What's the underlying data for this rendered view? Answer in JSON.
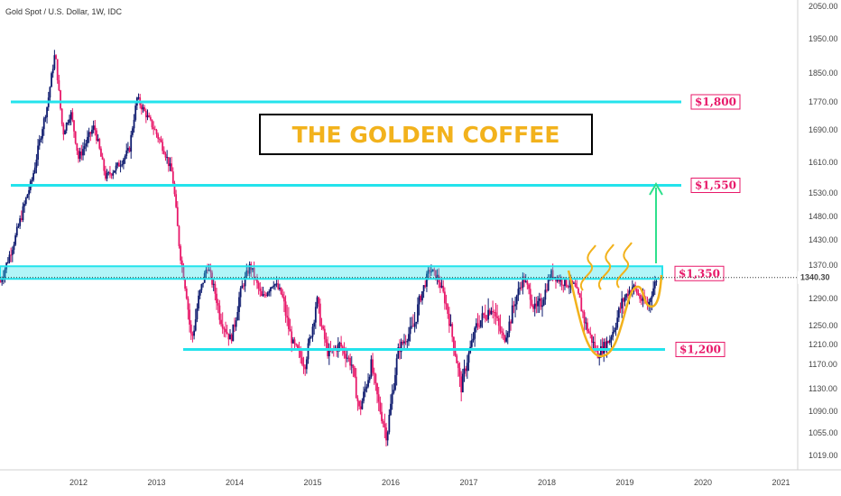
{
  "symbol_label": "Gold Spot / U.S. Dollar, 1W, IDC",
  "banner_text": "THE GOLDEN COFFEE",
  "colors": {
    "bull": "#0d1a6e",
    "bear": "#e8196a",
    "level": "#23e3ec",
    "cup": "#f2b21c",
    "arrow": "#2ee08c"
  },
  "chart_data": {
    "type": "candlestick",
    "y_axis": {
      "ticks": [
        2050.0,
        1950.0,
        1850.0,
        1770.0,
        1690.0,
        1610.0,
        1530.0,
        1480.0,
        1430.0,
        1370.0,
        1290.0,
        1250.0,
        1210.0,
        1170.0,
        1130.0,
        1090.0,
        1055.0,
        1019.0
      ],
      "tick_labels": [
        "2050.00",
        "1950.00",
        "1850.00",
        "1770.00",
        "1690.00",
        "1610.00",
        "1530.00",
        "1480.00",
        "1430.00",
        "1370.00",
        "1290.00",
        "1250.00",
        "1210.00",
        "1170.00",
        "1130.00",
        "1090.00",
        "1055.00",
        "1019.00"
      ],
      "current_price": 1340.3,
      "current_price_label": "1340.30"
    },
    "x_axis": {
      "labels": [
        "2012",
        "2013",
        "2014",
        "2015",
        "2016",
        "2017",
        "2018",
        "2019",
        "2020",
        "2021"
      ]
    },
    "levels": [
      {
        "label": "$1,800",
        "value": 1770
      },
      {
        "label": "$1,550",
        "value": 1550
      },
      {
        "label": "$1,350",
        "value": 1350
      },
      {
        "label": "$1,200",
        "value": 1200
      }
    ],
    "path_points": [
      [
        2011.0,
        1330
      ],
      [
        2011.2,
        1440
      ],
      [
        2011.4,
        1560
      ],
      [
        2011.6,
        1760
      ],
      [
        2011.7,
        1910
      ],
      [
        2011.8,
        1680
      ],
      [
        2011.9,
        1740
      ],
      [
        2012.0,
        1620
      ],
      [
        2012.2,
        1700
      ],
      [
        2012.35,
        1570
      ],
      [
        2012.5,
        1600
      ],
      [
        2012.65,
        1640
      ],
      [
        2012.75,
        1780
      ],
      [
        2012.9,
        1720
      ],
      [
        2013.0,
        1680
      ],
      [
        2013.1,
        1640
      ],
      [
        2013.2,
        1580
      ],
      [
        2013.3,
        1400
      ],
      [
        2013.45,
        1220
      ],
      [
        2013.55,
        1300
      ],
      [
        2013.65,
        1370
      ],
      [
        2013.8,
        1270
      ],
      [
        2013.95,
        1220
      ],
      [
        2014.1,
        1320
      ],
      [
        2014.2,
        1370
      ],
      [
        2014.35,
        1290
      ],
      [
        2014.5,
        1330
      ],
      [
        2014.6,
        1300
      ],
      [
        2014.75,
        1210
      ],
      [
        2014.9,
        1170
      ],
      [
        2015.05,
        1290
      ],
      [
        2015.2,
        1190
      ],
      [
        2015.35,
        1210
      ],
      [
        2015.5,
        1170
      ],
      [
        2015.6,
        1090
      ],
      [
        2015.75,
        1170
      ],
      [
        2015.85,
        1100
      ],
      [
        2015.95,
        1050
      ],
      [
        2016.1,
        1200
      ],
      [
        2016.3,
        1250
      ],
      [
        2016.5,
        1360
      ],
      [
        2016.6,
        1340
      ],
      [
        2016.75,
        1260
      ],
      [
        2016.9,
        1130
      ],
      [
        2017.0,
        1190
      ],
      [
        2017.1,
        1250
      ],
      [
        2017.3,
        1280
      ],
      [
        2017.45,
        1220
      ],
      [
        2017.6,
        1290
      ],
      [
        2017.7,
        1340
      ],
      [
        2017.85,
        1270
      ],
      [
        2017.95,
        1290
      ],
      [
        2018.05,
        1350
      ],
      [
        2018.2,
        1330
      ],
      [
        2018.35,
        1320
      ],
      [
        2018.5,
        1250
      ],
      [
        2018.65,
        1190
      ],
      [
        2018.8,
        1220
      ],
      [
        2018.95,
        1280
      ],
      [
        2019.1,
        1320
      ],
      [
        2019.2,
        1290
      ],
      [
        2019.3,
        1280
      ],
      [
        2019.42,
        1345
      ]
    ]
  }
}
